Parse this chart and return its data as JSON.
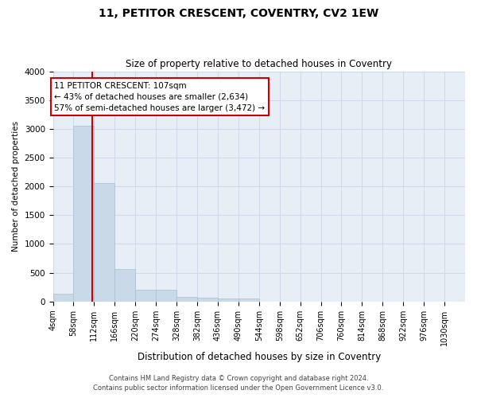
{
  "title1": "11, PETITOR CRESCENT, COVENTRY, CV2 1EW",
  "title2": "Size of property relative to detached houses in Coventry",
  "xlabel": "Distribution of detached houses by size in Coventry",
  "ylabel": "Number of detached properties",
  "footer1": "Contains HM Land Registry data © Crown copyright and database right 2024.",
  "footer2": "Contains public sector information licensed under the Open Government Licence v3.0.",
  "property_size": 107,
  "property_label": "11 PETITOR CRESCENT: 107sqm",
  "annotation_line1": "← 43% of detached houses are smaller (2,634)",
  "annotation_line2": "57% of semi-detached houses are larger (3,472) →",
  "bar_edges": [
    4,
    58,
    112,
    166,
    220,
    274,
    328,
    382,
    436,
    490,
    544,
    598,
    652,
    706,
    760,
    814,
    868,
    922,
    976,
    1030,
    1084
  ],
  "bar_heights": [
    130,
    3060,
    2060,
    560,
    200,
    200,
    80,
    60,
    50,
    50,
    0,
    0,
    0,
    0,
    0,
    0,
    0,
    0,
    0,
    0
  ],
  "bar_color": "#c9d9e8",
  "bar_edgecolor": "#a8bfd0",
  "vline_x": 107,
  "vline_color": "#cc0000",
  "ylim": [
    0,
    4000
  ],
  "yticks": [
    0,
    500,
    1000,
    1500,
    2000,
    2500,
    3000,
    3500,
    4000
  ],
  "annotation_box_color": "#cc0000",
  "grid_color": "#cdd8e8",
  "background_color": "#e8eef5",
  "title1_fontsize": 10,
  "title2_fontsize": 8.5,
  "xlabel_fontsize": 8.5,
  "ylabel_fontsize": 7.5,
  "tick_fontsize": 7,
  "footer_fontsize": 6,
  "annot_fontsize": 7.5
}
